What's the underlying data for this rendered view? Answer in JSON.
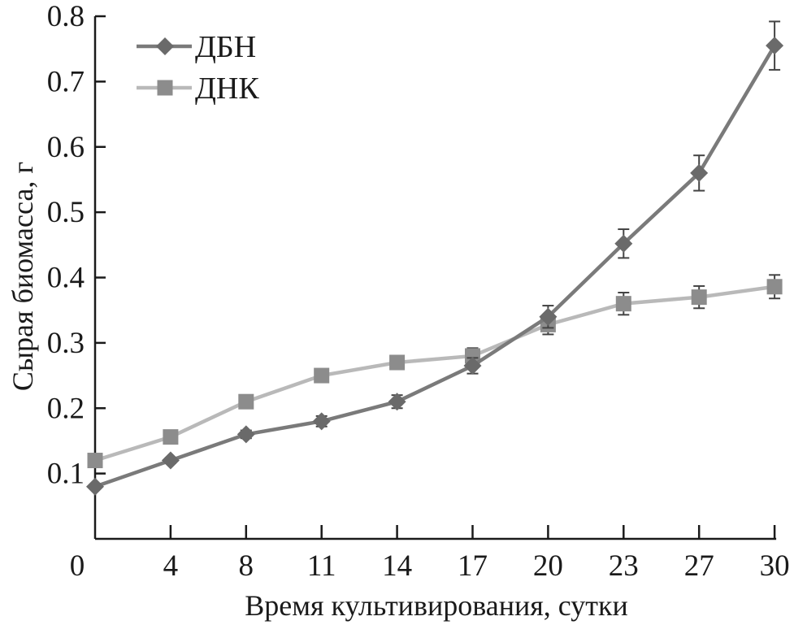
{
  "chart_data": {
    "type": "line",
    "title": "",
    "xlabel": "Время культивирования, сутки",
    "ylabel": "Сырая биомасса, г",
    "categories": [
      "0",
      "4",
      "8",
      "11",
      "14",
      "17",
      "20",
      "23",
      "27",
      "30"
    ],
    "ylim": [
      0,
      0.8
    ],
    "yticks": [
      "0.1",
      "0.2",
      "0.3",
      "0.4",
      "0.5",
      "0.6",
      "0.7",
      "0.8"
    ],
    "grid": false,
    "legend_position": "top-left",
    "series": [
      {
        "name": "ДБН",
        "marker": "diamond",
        "line_color": "#7a7a7a",
        "marker_color": "#6a6a6a",
        "values": [
          0.08,
          0.12,
          0.16,
          0.18,
          0.21,
          0.265,
          0.34,
          0.452,
          0.56,
          0.755
        ],
        "errors": [
          0.003,
          0.004,
          0.006,
          0.008,
          0.01,
          0.012,
          0.017,
          0.022,
          0.027,
          0.037
        ]
      },
      {
        "name": "ДНК",
        "marker": "square",
        "line_color": "#b9b9b9",
        "marker_color": "#8c8c8c",
        "values": [
          0.12,
          0.156,
          0.21,
          0.25,
          0.27,
          0.28,
          0.328,
          0.36,
          0.37,
          0.386
        ],
        "errors": [
          0.003,
          0.004,
          0.004,
          0.01,
          0.01,
          0.012,
          0.015,
          0.017,
          0.017,
          0.018
        ]
      }
    ]
  }
}
